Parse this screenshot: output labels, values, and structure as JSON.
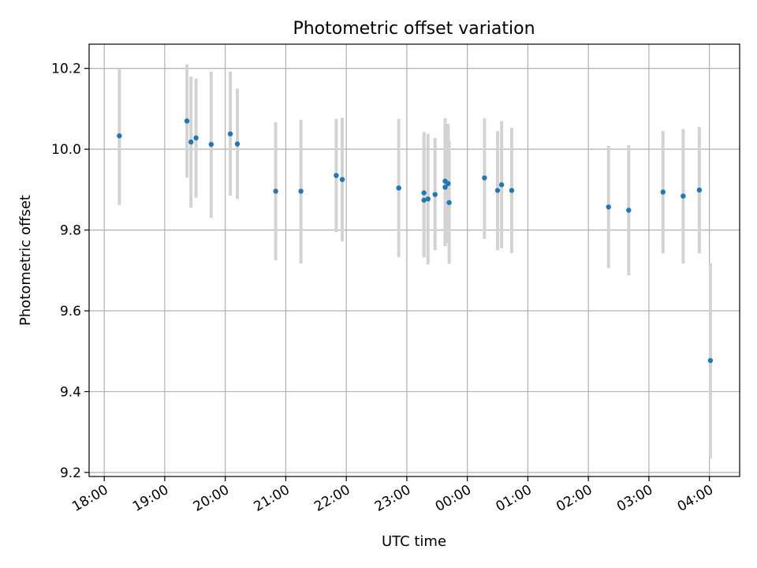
{
  "chart_data": {
    "type": "scatter",
    "title": "Photometric offset variation",
    "xlabel": "UTC time",
    "ylabel": "Photometric offset",
    "x_unit": "hours since 18:00 UTC",
    "xlim": [
      -0.25,
      10.5
    ],
    "ylim": [
      9.19,
      10.26
    ],
    "grid": true,
    "x_ticks": [
      {
        "value": 0,
        "label": "18:00"
      },
      {
        "value": 1,
        "label": "19:00"
      },
      {
        "value": 2,
        "label": "20:00"
      },
      {
        "value": 3,
        "label": "21:00"
      },
      {
        "value": 4,
        "label": "22:00"
      },
      {
        "value": 5,
        "label": "23:00"
      },
      {
        "value": 6,
        "label": "00:00"
      },
      {
        "value": 7,
        "label": "01:00"
      },
      {
        "value": 8,
        "label": "02:00"
      },
      {
        "value": 9,
        "label": "03:00"
      },
      {
        "value": 10,
        "label": "04:00"
      }
    ],
    "y_ticks": [
      {
        "value": 9.2,
        "label": "9.2"
      },
      {
        "value": 9.4,
        "label": "9.4"
      },
      {
        "value": 9.6,
        "label": "9.6"
      },
      {
        "value": 9.8,
        "label": "9.8"
      },
      {
        "value": 10.0,
        "label": "10.0"
      },
      {
        "value": 10.2,
        "label": "10.2"
      }
    ],
    "point_color": "#1f77b4",
    "errorbar_color": "#d3d3d3",
    "points": [
      {
        "t": "18:15",
        "y": 10.033,
        "lo": 9.862,
        "hi": 10.2
      },
      {
        "t": "19:22",
        "y": 10.07,
        "lo": 9.93,
        "hi": 10.21
      },
      {
        "t": "19:26",
        "y": 10.018,
        "lo": 9.855,
        "hi": 10.18
      },
      {
        "t": "19:31",
        "y": 10.028,
        "lo": 9.88,
        "hi": 10.175
      },
      {
        "t": "19:46",
        "y": 10.012,
        "lo": 9.83,
        "hi": 10.192
      },
      {
        "t": "20:05",
        "y": 10.038,
        "lo": 9.885,
        "hi": 10.192
      },
      {
        "t": "20:12",
        "y": 10.013,
        "lo": 9.877,
        "hi": 10.15
      },
      {
        "t": "20:50",
        "y": 9.896,
        "lo": 9.725,
        "hi": 10.067
      },
      {
        "t": "21:15",
        "y": 9.896,
        "lo": 9.717,
        "hi": 10.073
      },
      {
        "t": "21:50",
        "y": 9.935,
        "lo": 9.795,
        "hi": 10.075
      },
      {
        "t": "21:56",
        "y": 9.925,
        "lo": 9.772,
        "hi": 10.078
      },
      {
        "t": "22:52",
        "y": 9.904,
        "lo": 9.733,
        "hi": 10.075
      },
      {
        "t": "23:17",
        "y": 9.892,
        "lo": 9.732,
        "hi": 10.043
      },
      {
        "t": "23:17",
        "y": 9.874,
        "lo": 9.733,
        "hi": 10.015
      },
      {
        "t": "23:21",
        "y": 9.877,
        "lo": 9.715,
        "hi": 10.038
      },
      {
        "t": "23:28",
        "y": 9.888,
        "lo": 9.75,
        "hi": 10.028
      },
      {
        "t": "23:38",
        "y": 9.921,
        "lo": 9.76,
        "hi": 10.077
      },
      {
        "t": "23:38",
        "y": 9.906,
        "lo": 9.762,
        "hi": 10.05
      },
      {
        "t": "23:41",
        "y": 9.915,
        "lo": 9.768,
        "hi": 10.063
      },
      {
        "t": "23:42",
        "y": 9.868,
        "lo": 9.716,
        "hi": 10.021
      },
      {
        "t": "00:17",
        "y": 9.929,
        "lo": 9.778,
        "hi": 10.077
      },
      {
        "t": "00:30",
        "y": 9.898,
        "lo": 9.75,
        "hi": 10.045
      },
      {
        "t": "00:34",
        "y": 9.912,
        "lo": 9.755,
        "hi": 10.07
      },
      {
        "t": "00:44",
        "y": 9.898,
        "lo": 9.743,
        "hi": 10.053
      },
      {
        "t": "02:20",
        "y": 9.857,
        "lo": 9.706,
        "hi": 10.008
      },
      {
        "t": "02:40",
        "y": 9.849,
        "lo": 9.688,
        "hi": 10.01
      },
      {
        "t": "03:14",
        "y": 9.894,
        "lo": 9.742,
        "hi": 10.045
      },
      {
        "t": "03:34",
        "y": 9.884,
        "lo": 9.717,
        "hi": 10.05
      },
      {
        "t": "03:50",
        "y": 9.899,
        "lo": 9.742,
        "hi": 10.055
      },
      {
        "t": "04:01",
        "y": 9.477,
        "lo": 9.235,
        "hi": 9.718
      }
    ]
  }
}
